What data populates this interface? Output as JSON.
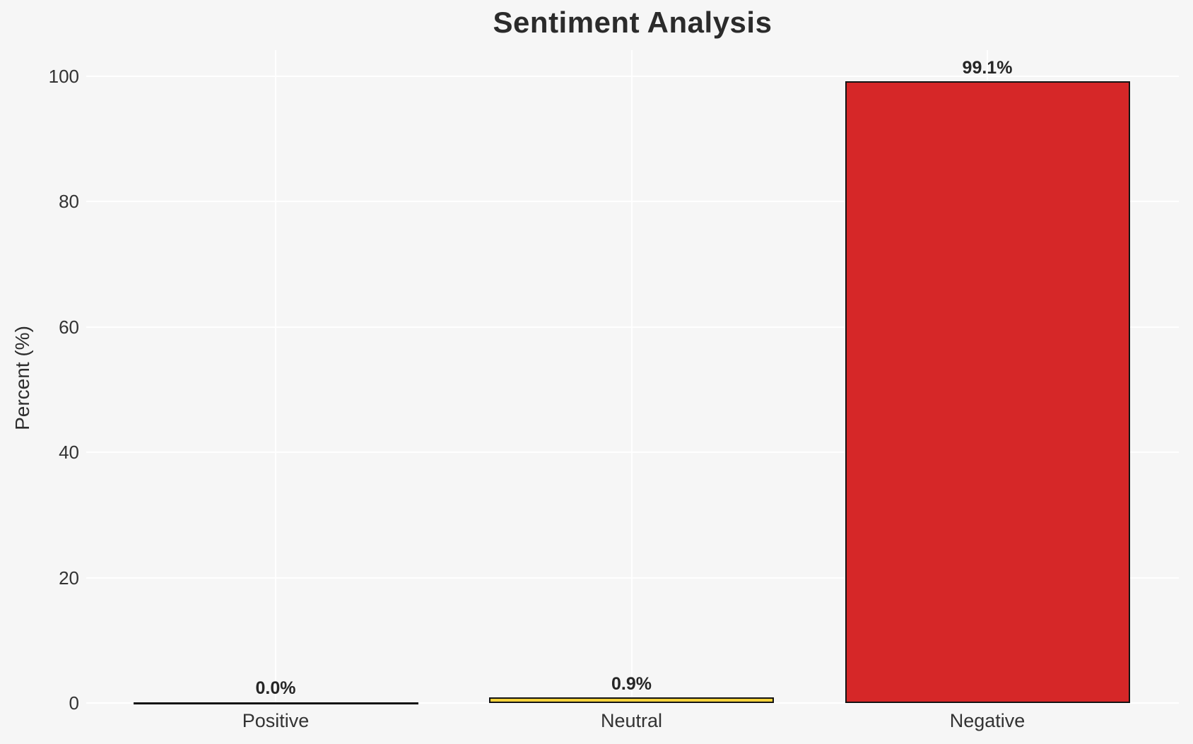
{
  "chart_data": {
    "type": "bar",
    "title": "Sentiment Analysis",
    "xlabel": "",
    "ylabel": "Percent (%)",
    "categories": [
      "Positive",
      "Neutral",
      "Negative"
    ],
    "values": [
      0.0,
      0.9,
      99.1
    ],
    "value_labels": [
      "0.0%",
      "0.9%",
      "99.1%"
    ],
    "bar_colors": [
      null,
      "#f5d23c",
      "#d62728"
    ],
    "bar_edge_color": "#141414",
    "yticks": [
      0,
      20,
      40,
      60,
      80,
      100
    ],
    "ylim": [
      0,
      104
    ],
    "grid": true,
    "grid_color": "#ffffff",
    "background_color": "#f6f6f6",
    "legend": null
  }
}
